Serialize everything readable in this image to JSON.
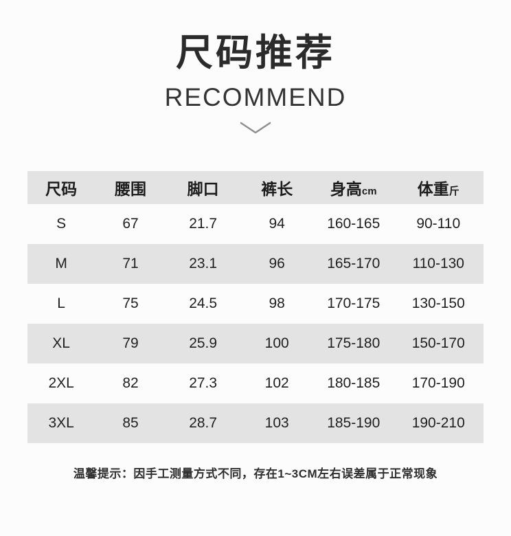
{
  "header": {
    "title": "尺码推荐",
    "subtitle": "RECOMMEND"
  },
  "icons": {
    "chevron_down": "chevron-down"
  },
  "colors": {
    "page_bg": "#fcfcfc",
    "row_stripe": "#e3e3e3",
    "text_primary": "#262626",
    "chevron": "#8f8f8f"
  },
  "table": {
    "columns": [
      {
        "label": "尺码",
        "suffix": ""
      },
      {
        "label": "腰围",
        "suffix": ""
      },
      {
        "label": "脚口",
        "suffix": ""
      },
      {
        "label": "裤长",
        "suffix": ""
      },
      {
        "label": "身高",
        "suffix": "cm"
      },
      {
        "label": "体重",
        "suffix": "斤"
      }
    ],
    "rows": [
      [
        "S",
        "67",
        "21.7",
        "94",
        "160-165",
        "90-110"
      ],
      [
        "M",
        "71",
        "23.1",
        "96",
        "165-170",
        "110-130"
      ],
      [
        "L",
        "75",
        "24.5",
        "98",
        "170-175",
        "130-150"
      ],
      [
        "XL",
        "79",
        "25.9",
        "100",
        "175-180",
        "150-170"
      ],
      [
        "2XL",
        "82",
        "27.3",
        "102",
        "180-185",
        "170-190"
      ],
      [
        "3XL",
        "85",
        "28.7",
        "103",
        "185-190",
        "190-210"
      ]
    ]
  },
  "footer": {
    "note": "温馨提示：因手工测量方式不同，存在1~3CM左右误差属于正常现象"
  },
  "chart_data": {
    "type": "table",
    "title": "尺码推荐 RECOMMEND",
    "columns": [
      "尺码",
      "腰围",
      "脚口",
      "裤长",
      "身高cm",
      "体重斤"
    ],
    "rows": [
      [
        "S",
        67,
        21.7,
        94,
        "160-165",
        "90-110"
      ],
      [
        "M",
        71,
        23.1,
        96,
        "165-170",
        "110-130"
      ],
      [
        "L",
        75,
        24.5,
        98,
        "170-175",
        "130-150"
      ],
      [
        "XL",
        79,
        25.9,
        100,
        "175-180",
        "150-170"
      ],
      [
        "2XL",
        82,
        27.3,
        102,
        "180-185",
        "170-190"
      ],
      [
        "3XL",
        85,
        28.7,
        103,
        "185-190",
        "190-210"
      ]
    ],
    "annotations": [
      "温馨提示：因手工测量方式不同，存在1~3CM左右误差属于正常现象"
    ]
  }
}
